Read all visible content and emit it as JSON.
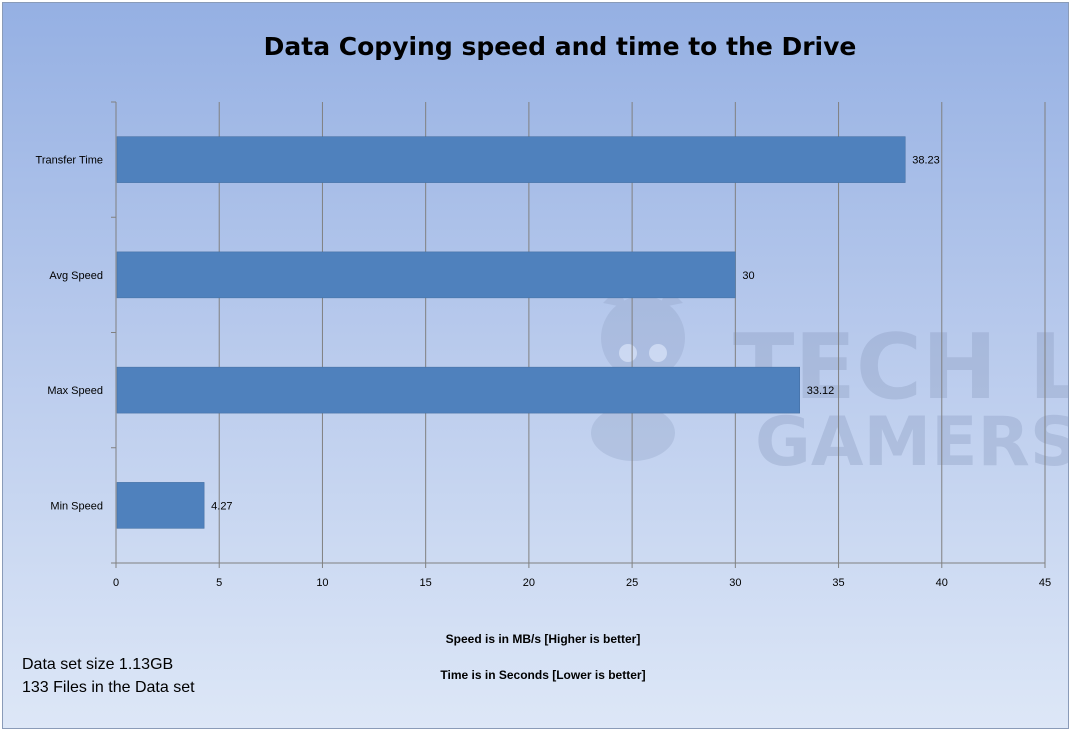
{
  "chart_data": {
    "type": "bar",
    "orientation": "horizontal",
    "title": "Data Copying speed and time to the Drive",
    "categories": [
      "Transfer Time",
      "Avg Speed",
      "Max Speed",
      "Min Speed"
    ],
    "values": [
      38.23,
      30,
      33.12,
      4.27
    ],
    "data_labels": [
      "38.23",
      "30",
      "33.12",
      "4.27"
    ],
    "xlim": [
      0,
      45
    ],
    "x_ticks": [
      0,
      5,
      10,
      15,
      20,
      25,
      30,
      35,
      40,
      45
    ],
    "grid": true,
    "bar_color": "#4f81bd",
    "annotations": [
      "Speed is in MB/s [Higher is better]",
      "Time is in Seconds [Lower  is better]"
    ]
  },
  "notes": {
    "line1": "Data set size 1.13GB",
    "line2": "133 Files in the Data set"
  },
  "watermark": {
    "line1": "TECH L",
    "line2": "GAMERS"
  }
}
